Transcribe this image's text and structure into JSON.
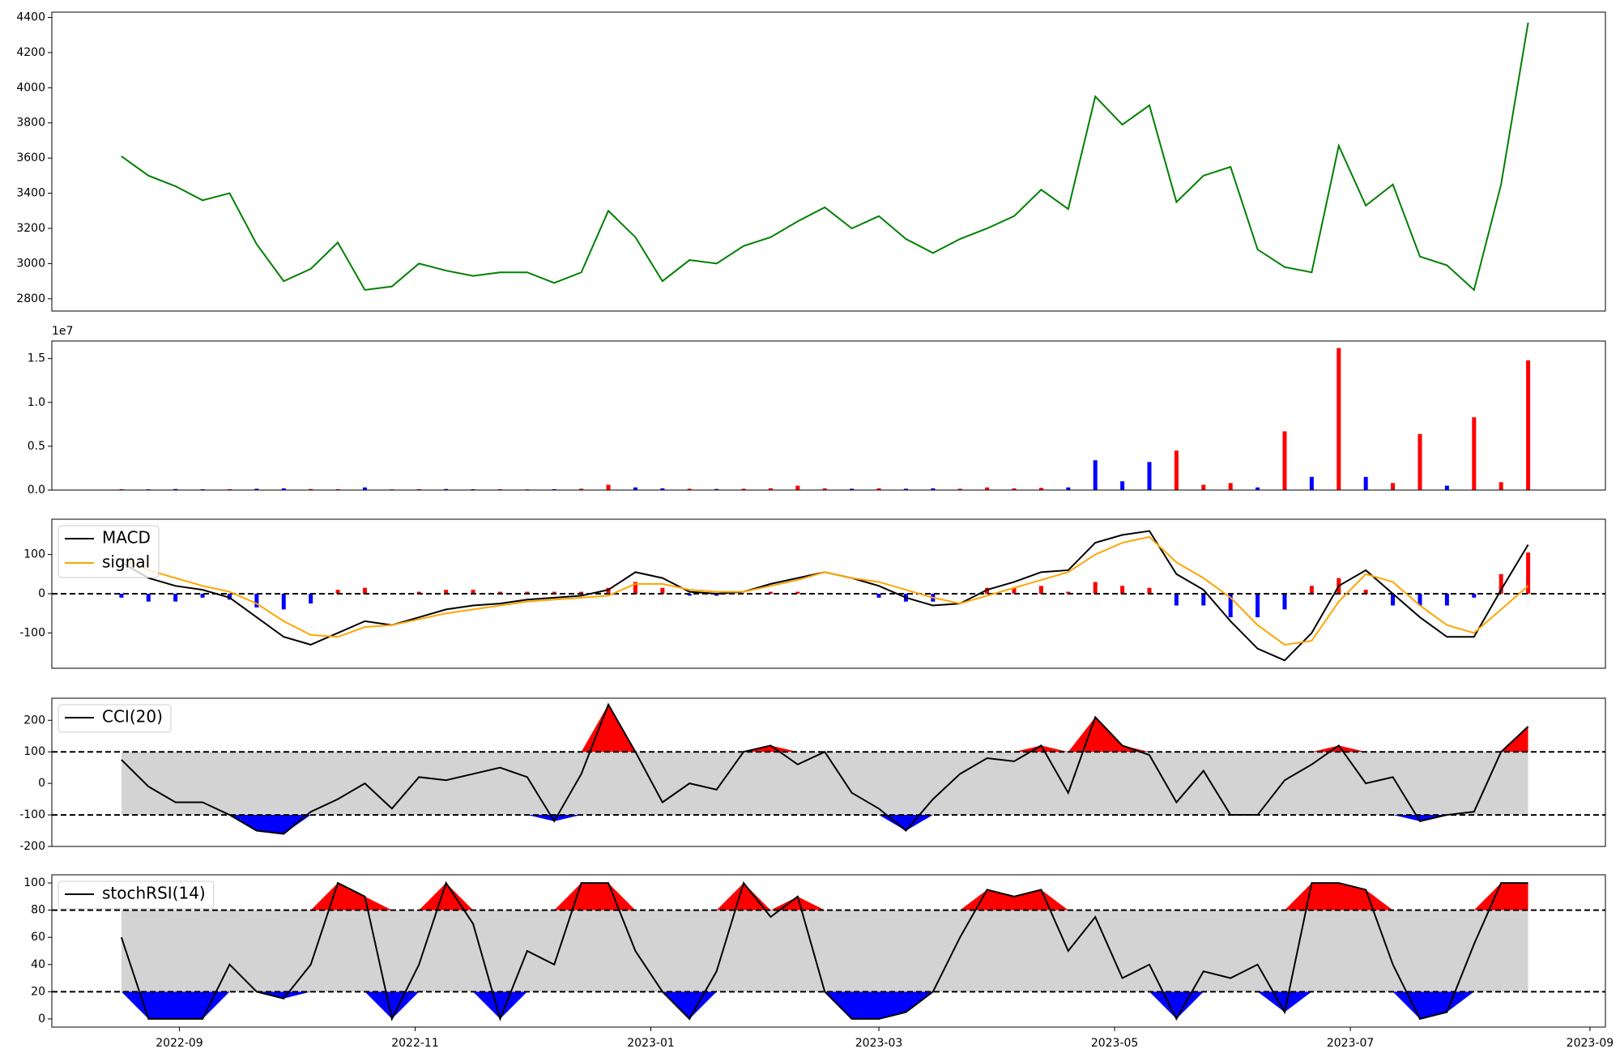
{
  "chart_data": [
    {
      "type": "line",
      "x": [
        "2022-08-17",
        "2022-08-24",
        "2022-08-31",
        "2022-09-07",
        "2022-09-14",
        "2022-09-21",
        "2022-09-28",
        "2022-10-05",
        "2022-10-12",
        "2022-10-19",
        "2022-10-26",
        "2022-11-02",
        "2022-11-09",
        "2022-11-16",
        "2022-11-23",
        "2022-11-30",
        "2022-12-07",
        "2022-12-14",
        "2022-12-21",
        "2022-12-28",
        "2023-01-04",
        "2023-01-11",
        "2023-01-18",
        "2023-01-25",
        "2023-02-01",
        "2023-02-08",
        "2023-02-15",
        "2023-02-22",
        "2023-03-01",
        "2023-03-08",
        "2023-03-15",
        "2023-03-22",
        "2023-03-29",
        "2023-04-05",
        "2023-04-12",
        "2023-04-19",
        "2023-04-26",
        "2023-05-03",
        "2023-05-10",
        "2023-05-17",
        "2023-05-24",
        "2023-05-31",
        "2023-06-07",
        "2023-06-14",
        "2023-06-21",
        "2023-06-28",
        "2023-07-05",
        "2023-07-12",
        "2023-07-19",
        "2023-07-26",
        "2023-08-02",
        "2023-08-09",
        "2023-08-16"
      ],
      "values": [
        3610,
        3500,
        3440,
        3360,
        3400,
        3110,
        2900,
        2970,
        3120,
        2850,
        2870,
        3000,
        2960,
        2930,
        2950,
        2950,
        2890,
        2950,
        3300,
        3150,
        2900,
        3020,
        3000,
        3100,
        3150,
        3240,
        3320,
        3200,
        3270,
        3140,
        3060,
        3140,
        3200,
        3270,
        3420,
        3310,
        3950,
        3790,
        3900,
        3350,
        3500,
        3550,
        3080,
        2980,
        2950,
        3670,
        3330,
        3450,
        3040,
        2990,
        2850,
        3450,
        4370
      ],
      "color": "green",
      "xlim": [
        "2022-07-30",
        "2023-09-05"
      ],
      "ylim": [
        2730,
        4430
      ],
      "yticks": [
        2800,
        3000,
        3200,
        3400,
        3600,
        3800,
        4000,
        4200,
        4400
      ]
    },
    {
      "type": "bar",
      "x": [
        "2022-08-17",
        "2022-08-24",
        "2022-08-31",
        "2022-09-07",
        "2022-09-14",
        "2022-09-21",
        "2022-09-28",
        "2022-10-05",
        "2022-10-12",
        "2022-10-19",
        "2022-10-26",
        "2022-11-02",
        "2022-11-09",
        "2022-11-16",
        "2022-11-23",
        "2022-11-30",
        "2022-12-07",
        "2022-12-14",
        "2022-12-21",
        "2022-12-28",
        "2023-01-04",
        "2023-01-11",
        "2023-01-18",
        "2023-01-25",
        "2023-02-01",
        "2023-02-08",
        "2023-02-15",
        "2023-02-22",
        "2023-03-01",
        "2023-03-08",
        "2023-03-15",
        "2023-03-22",
        "2023-03-29",
        "2023-04-05",
        "2023-04-12",
        "2023-04-19",
        "2023-04-26",
        "2023-05-03",
        "2023-05-10",
        "2023-05-17",
        "2023-05-24",
        "2023-05-31",
        "2023-06-07",
        "2023-06-14",
        "2023-06-21",
        "2023-06-28",
        "2023-07-05",
        "2023-07-12",
        "2023-07-19",
        "2023-07-26",
        "2023-08-02",
        "2023-08-09",
        "2023-08-16"
      ],
      "values": [
        100000,
        80000,
        120000,
        90000,
        100000,
        150000,
        200000,
        120000,
        100000,
        300000,
        80000,
        100000,
        120000,
        90000,
        100000,
        80000,
        100000,
        150000,
        600000,
        300000,
        200000,
        150000,
        120000,
        150000,
        200000,
        500000,
        200000,
        150000,
        200000,
        150000,
        200000,
        150000,
        300000,
        200000,
        250000,
        300000,
        3400000,
        1000000,
        3200000,
        4500000,
        600000,
        800000,
        300000,
        6700000,
        1500000,
        16200000,
        1500000,
        800000,
        6400000,
        500000,
        8300000,
        900000,
        14800000
      ],
      "colors": [
        "red",
        "blue",
        "blue",
        "blue",
        "red",
        "blue",
        "blue",
        "red",
        "red",
        "blue",
        "red",
        "red",
        "blue",
        "blue",
        "red",
        "red",
        "blue",
        "red",
        "red",
        "blue",
        "blue",
        "red",
        "blue",
        "red",
        "red",
        "red",
        "red",
        "blue",
        "red",
        "blue",
        "blue",
        "red",
        "red",
        "red",
        "red",
        "blue",
        "blue",
        "blue",
        "blue",
        "red",
        "red",
        "red",
        "blue",
        "red",
        "blue",
        "red",
        "blue",
        "red",
        "red",
        "blue",
        "red",
        "red",
        "red"
      ],
      "xlim": [
        "2022-07-30",
        "2023-09-05"
      ],
      "ylim": [
        0,
        17000000
      ],
      "yticks": [
        {
          "value": 0,
          "label": "0.0"
        },
        {
          "value": 5000000,
          "label": "0.5"
        },
        {
          "value": 10000000,
          "label": "1.0"
        },
        {
          "value": 15000000,
          "label": "1.5"
        }
      ],
      "offset_label": "1e7"
    },
    {
      "type": "line",
      "x": [
        "2022-08-17",
        "2022-08-24",
        "2022-08-31",
        "2022-09-07",
        "2022-09-14",
        "2022-09-21",
        "2022-09-28",
        "2022-10-05",
        "2022-10-12",
        "2022-10-19",
        "2022-10-26",
        "2022-11-02",
        "2022-11-09",
        "2022-11-16",
        "2022-11-23",
        "2022-11-30",
        "2022-12-07",
        "2022-12-14",
        "2022-12-21",
        "2022-12-28",
        "2023-01-04",
        "2023-01-11",
        "2023-01-18",
        "2023-01-25",
        "2023-02-01",
        "2023-02-08",
        "2023-02-15",
        "2023-02-22",
        "2023-03-01",
        "2023-03-08",
        "2023-03-15",
        "2023-03-22",
        "2023-03-29",
        "2023-04-05",
        "2023-04-12",
        "2023-04-19",
        "2023-04-26",
        "2023-05-03",
        "2023-05-10",
        "2023-05-17",
        "2023-05-24",
        "2023-05-31",
        "2023-06-07",
        "2023-06-14",
        "2023-06-21",
        "2023-06-28",
        "2023-07-05",
        "2023-07-12",
        "2023-07-19",
        "2023-07-26",
        "2023-08-02",
        "2023-08-09",
        "2023-08-16"
      ],
      "series": [
        {
          "name": "MACD",
          "color": "black",
          "values": [
            80,
            40,
            20,
            10,
            -10,
            -60,
            -110,
            -130,
            -100,
            -70,
            -80,
            -60,
            -40,
            -30,
            -25,
            -15,
            -10,
            -5,
            10,
            55,
            40,
            5,
            0,
            5,
            25,
            40,
            55,
            40,
            20,
            -10,
            -30,
            -25,
            10,
            30,
            55,
            60,
            130,
            150,
            160,
            50,
            10,
            -70,
            -140,
            -170,
            -100,
            20,
            60,
            0,
            -60,
            -110,
            -110,
            10,
            125
          ]
        },
        {
          "name": "signal",
          "color": "orange",
          "values": [
            90,
            60,
            40,
            20,
            5,
            -25,
            -70,
            -105,
            -110,
            -85,
            -80,
            -65,
            -50,
            -40,
            -30,
            -20,
            -15,
            -10,
            -5,
            25,
            25,
            10,
            5,
            5,
            20,
            35,
            55,
            40,
            30,
            10,
            -10,
            -25,
            -5,
            15,
            35,
            55,
            100,
            130,
            145,
            80,
            40,
            -10,
            -80,
            -130,
            -120,
            -20,
            50,
            30,
            -30,
            -80,
            -100,
            -40,
            20
          ]
        }
      ],
      "bars": [
        -10,
        -20,
        -20,
        -10,
        -15,
        -35,
        -40,
        -25,
        10,
        15,
        0,
        5,
        10,
        10,
        5,
        5,
        5,
        5,
        15,
        30,
        15,
        -5,
        -5,
        0,
        5,
        5,
        0,
        0,
        -10,
        -20,
        -20,
        0,
        15,
        15,
        20,
        5,
        30,
        20,
        15,
        -30,
        -30,
        -60,
        -60,
        -40,
        20,
        40,
        10,
        -30,
        -30,
        -30,
        -10,
        50,
        105
      ],
      "bar_colors": {
        "positive": "red",
        "negative": "blue"
      },
      "hlines": [
        0
      ],
      "legend": "upper left",
      "xlim": [
        "2022-07-30",
        "2023-09-05"
      ],
      "ylim": [
        -190,
        190
      ],
      "yticks": [
        -100,
        0,
        100
      ]
    },
    {
      "type": "line",
      "x": [
        "2022-08-17",
        "2022-08-24",
        "2022-08-31",
        "2022-09-07",
        "2022-09-14",
        "2022-09-21",
        "2022-09-28",
        "2022-10-05",
        "2022-10-12",
        "2022-10-19",
        "2022-10-26",
        "2022-11-02",
        "2022-11-09",
        "2022-11-16",
        "2022-11-23",
        "2022-11-30",
        "2022-12-07",
        "2022-12-14",
        "2022-12-21",
        "2022-12-28",
        "2023-01-04",
        "2023-01-11",
        "2023-01-18",
        "2023-01-25",
        "2023-02-01",
        "2023-02-08",
        "2023-02-15",
        "2023-02-22",
        "2023-03-01",
        "2023-03-08",
        "2023-03-15",
        "2023-03-22",
        "2023-03-29",
        "2023-04-05",
        "2023-04-12",
        "2023-04-19",
        "2023-04-26",
        "2023-05-03",
        "2023-05-10",
        "2023-05-17",
        "2023-05-24",
        "2023-05-31",
        "2023-06-07",
        "2023-06-14",
        "2023-06-21",
        "2023-06-28",
        "2023-07-05",
        "2023-07-12",
        "2023-07-19",
        "2023-07-26",
        "2023-08-02",
        "2023-08-09",
        "2023-08-16"
      ],
      "series": [
        {
          "name": "CCI(20)",
          "color": "black",
          "values": [
            75,
            -10,
            -60,
            -60,
            -100,
            -150,
            -160,
            -90,
            -50,
            0,
            -80,
            20,
            10,
            30,
            50,
            20,
            -120,
            30,
            250,
            100,
            -60,
            0,
            -20,
            100,
            120,
            60,
            100,
            -30,
            -80,
            -150,
            -50,
            30,
            80,
            70,
            120,
            -30,
            210,
            120,
            90,
            -60,
            40,
            -100,
            -100,
            10,
            60,
            120,
            0,
            20,
            -120,
            -100,
            -90,
            100,
            180
          ]
        }
      ],
      "hlines": [
        100,
        -100
      ],
      "fill": {
        "band": "lightgray",
        "above": "red",
        "below": "blue"
      },
      "legend": "upper left",
      "xlim": [
        "2022-07-30",
        "2023-09-05"
      ],
      "ylim": [
        -200,
        270
      ],
      "yticks": [
        -200,
        -100,
        0,
        100,
        200
      ]
    },
    {
      "type": "line",
      "x": [
        "2022-08-17",
        "2022-08-24",
        "2022-08-31",
        "2022-09-07",
        "2022-09-14",
        "2022-09-21",
        "2022-09-28",
        "2022-10-05",
        "2022-10-12",
        "2022-10-19",
        "2022-10-26",
        "2022-11-02",
        "2022-11-09",
        "2022-11-16",
        "2022-11-23",
        "2022-11-30",
        "2022-12-07",
        "2022-12-14",
        "2022-12-21",
        "2022-12-28",
        "2023-01-04",
        "2023-01-11",
        "2023-01-18",
        "2023-01-25",
        "2023-02-01",
        "2023-02-08",
        "2023-02-15",
        "2023-02-22",
        "2023-03-01",
        "2023-03-08",
        "2023-03-15",
        "2023-03-22",
        "2023-03-29",
        "2023-04-05",
        "2023-04-12",
        "2023-04-19",
        "2023-04-26",
        "2023-05-03",
        "2023-05-10",
        "2023-05-17",
        "2023-05-24",
        "2023-05-31",
        "2023-06-07",
        "2023-06-14",
        "2023-06-21",
        "2023-06-28",
        "2023-07-05",
        "2023-07-12",
        "2023-07-19",
        "2023-07-26",
        "2023-08-02",
        "2023-08-09",
        "2023-08-16"
      ],
      "series": [
        {
          "name": "stochRSI(14)",
          "color": "black",
          "values": [
            60,
            0,
            0,
            0,
            40,
            20,
            15,
            40,
            100,
            90,
            0,
            40,
            100,
            70,
            0,
            50,
            40,
            100,
            100,
            50,
            20,
            0,
            35,
            100,
            75,
            90,
            20,
            0,
            0,
            5,
            20,
            60,
            95,
            90,
            95,
            50,
            75,
            30,
            40,
            0,
            35,
            30,
            40,
            5,
            100,
            100,
            95,
            40,
            0,
            5,
            55,
            100,
            100
          ]
        }
      ],
      "hlines": [
        80,
        20
      ],
      "fill": {
        "band": "lightgray",
        "above": "red",
        "below": "blue"
      },
      "legend": "upper left",
      "xlim": [
        "2022-07-30",
        "2023-09-05"
      ],
      "ylim": [
        -6,
        106
      ],
      "yticks": [
        0,
        20,
        40,
        60,
        80,
        100
      ],
      "xticks": [
        {
          "value": "2022-09-01",
          "label": "2022-09"
        },
        {
          "value": "2022-11-01",
          "label": "2022-11"
        },
        {
          "value": "2023-01-01",
          "label": "2023-01"
        },
        {
          "value": "2023-03-01",
          "label": "2023-03"
        },
        {
          "value": "2023-05-01",
          "label": "2023-05"
        },
        {
          "value": "2023-07-01",
          "label": "2023-07"
        },
        {
          "value": "2023-09-01",
          "label": "2023-09"
        }
      ]
    }
  ]
}
